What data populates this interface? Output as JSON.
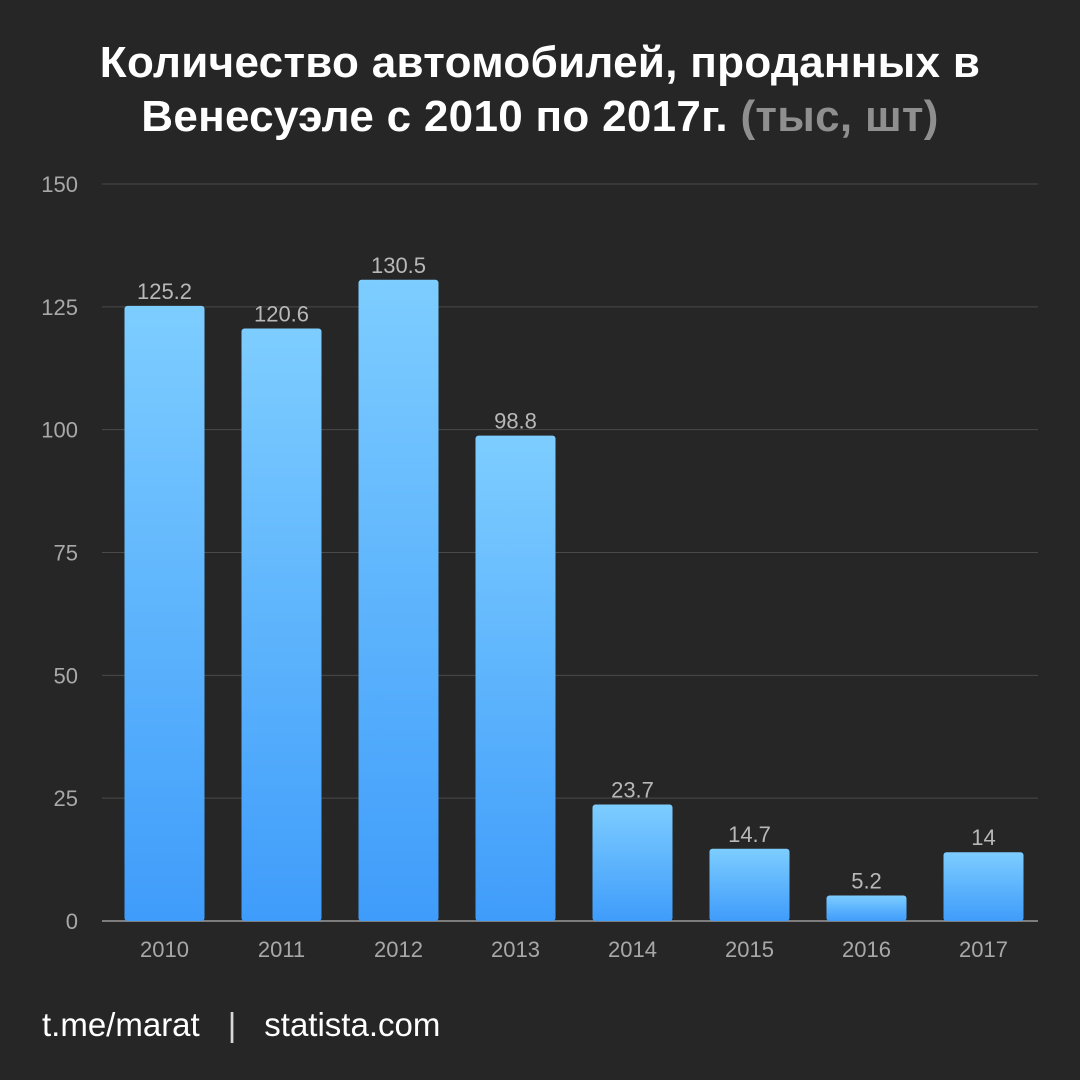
{
  "title": {
    "line1": "Количество автомобилей, проданных в",
    "line2": "Венесуэле с 2010 по 2017г.",
    "unit": "(тыс, шт)"
  },
  "footer": {
    "left": "t.me/marat",
    "separator": "|",
    "right": "statista.com"
  },
  "colors": {
    "background": "#262626",
    "bar_top": "#7dcdff",
    "bar_bottom": "#3f9cfa",
    "grid": "#4a4a4a",
    "axis_text": "#a8a8a8",
    "value_text": "#b8b8b8"
  },
  "chart_data": {
    "type": "bar",
    "categories": [
      "2010",
      "2011",
      "2012",
      "2013",
      "2014",
      "2015",
      "2016",
      "2017"
    ],
    "values": [
      125.2,
      120.6,
      130.5,
      98.8,
      23.7,
      14.7,
      5.2,
      14
    ],
    "value_labels": [
      "125.2",
      "120.6",
      "130.5",
      "98.8",
      "23.7",
      "14.7",
      "5.2",
      "14"
    ],
    "title": "Количество автомобилей, проданных в Венесуэле с 2010 по 2017г. (тыс, шт)",
    "xlabel": "",
    "ylabel": "",
    "ylim": [
      0,
      150
    ],
    "yticks": [
      0,
      25,
      50,
      75,
      100,
      125,
      150
    ],
    "grid": true,
    "legend": "none"
  }
}
